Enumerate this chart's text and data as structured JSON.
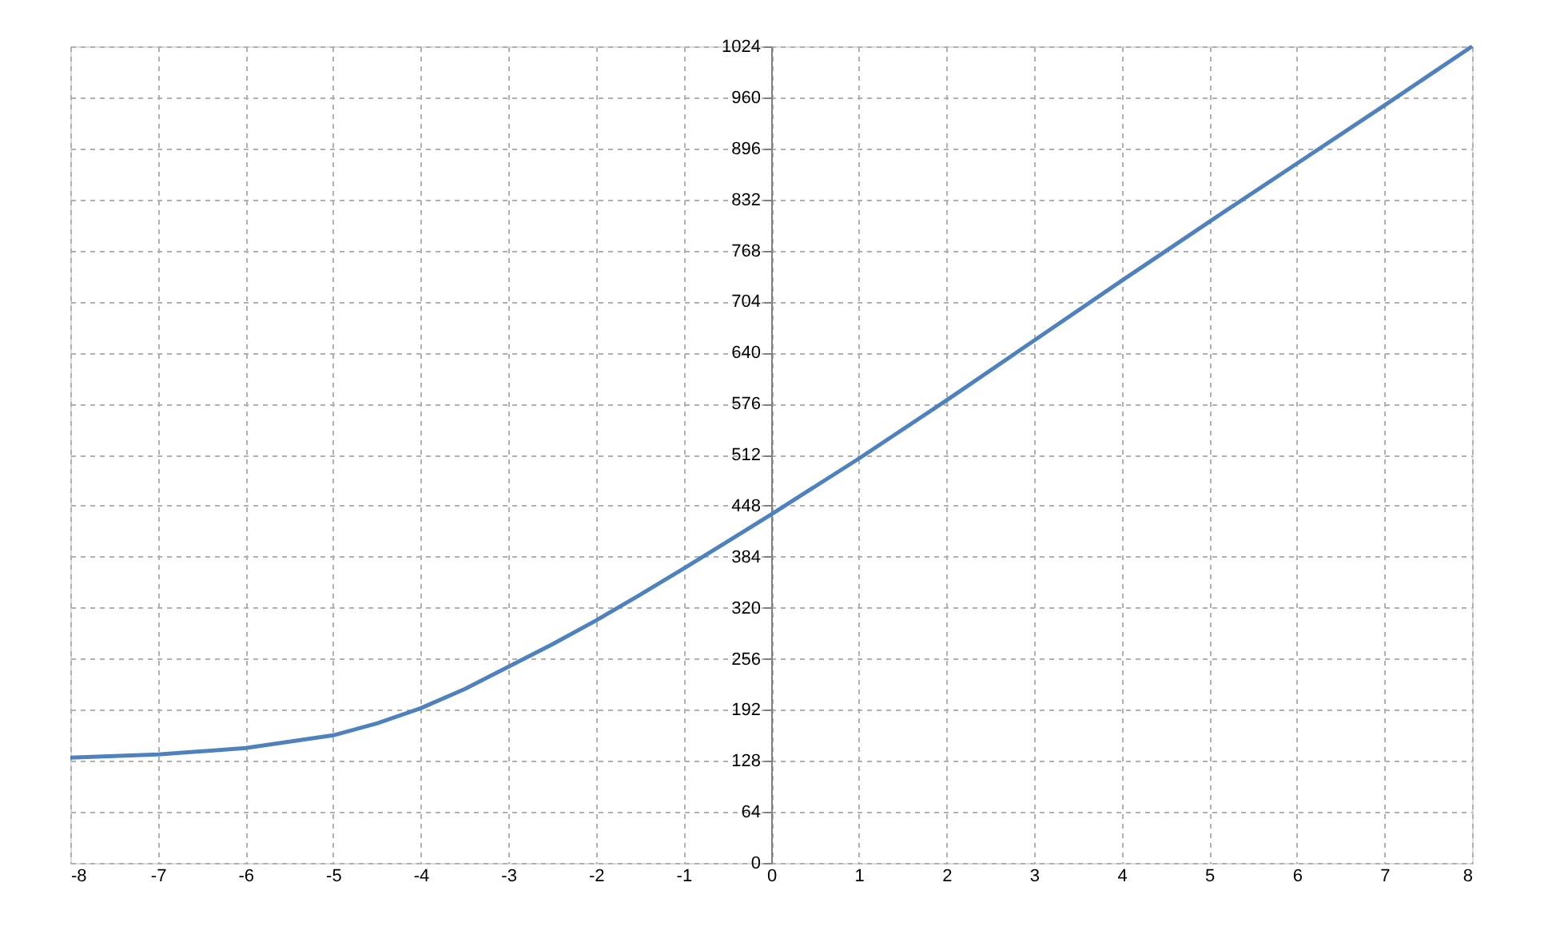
{
  "chart_data": {
    "type": "line",
    "x": [
      -8,
      -7,
      -6,
      -5,
      -4.5,
      -4,
      -3.5,
      -3,
      -2.5,
      -2,
      -1.5,
      -1,
      -0.5,
      0,
      1,
      2,
      3,
      4,
      5,
      6,
      7,
      8
    ],
    "series": [
      {
        "color": "#4f81bd",
        "values": [
          132,
          136,
          144,
          160,
          175,
          194,
          218,
          246,
          274,
          304,
          336,
          369,
          403,
          437,
          507,
          580,
          655,
          730,
          804,
          877,
          950,
          1024
        ]
      }
    ],
    "xlim": [
      -8,
      8
    ],
    "xticks": [
      -8,
      -7,
      -6,
      -5,
      -4,
      -3,
      -2,
      -1,
      0,
      1,
      2,
      3,
      4,
      5,
      6,
      7,
      8
    ],
    "ylim": [
      0,
      1024
    ],
    "yticks": [
      0,
      64,
      128,
      192,
      256,
      320,
      384,
      448,
      512,
      576,
      640,
      704,
      768,
      832,
      896,
      960,
      1024
    ],
    "grid": true,
    "marker": "none",
    "line_style": "solid"
  }
}
